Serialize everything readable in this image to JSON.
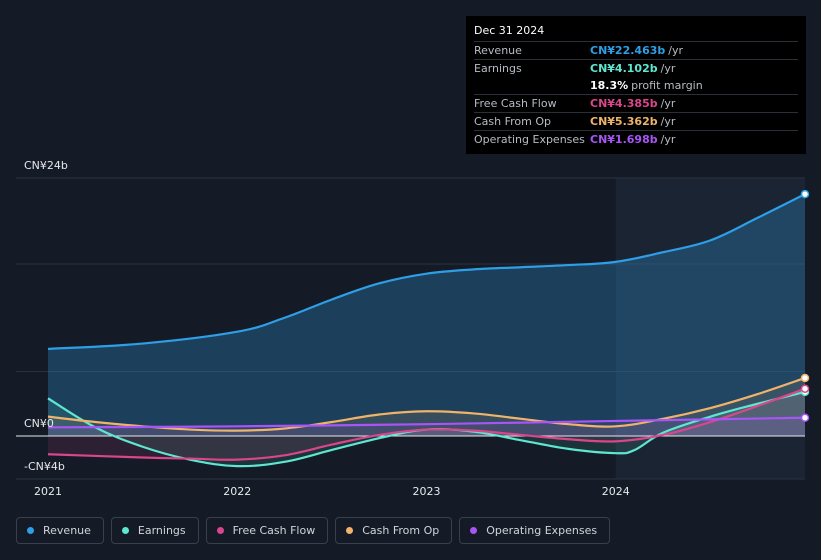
{
  "tooltip": {
    "date": "Dec 31 2024",
    "rows": [
      {
        "label": "Revenue",
        "value": "CN¥22.463b",
        "unit": "/yr",
        "color": "#2e9fe6"
      },
      {
        "label": "Earnings",
        "value": "CN¥4.102b",
        "unit": "/yr",
        "color": "#5ee6d0"
      },
      {
        "label": "Free Cash Flow",
        "value": "CN¥4.385b",
        "unit": "/yr",
        "color": "#d9468b"
      },
      {
        "label": "Cash From Op",
        "value": "CN¥5.362b",
        "unit": "/yr",
        "color": "#f0b36a"
      },
      {
        "label": "Operating Expenses",
        "value": "CN¥1.698b",
        "unit": "/yr",
        "color": "#a855f7"
      }
    ],
    "margin_value": "18.3%",
    "margin_label": "profit margin"
  },
  "legend": [
    {
      "label": "Revenue",
      "color": "#2e9fe6"
    },
    {
      "label": "Earnings",
      "color": "#5ee6d0"
    },
    {
      "label": "Free Cash Flow",
      "color": "#d9468b"
    },
    {
      "label": "Cash From Op",
      "color": "#f0b36a"
    },
    {
      "label": "Operating Expenses",
      "color": "#a855f7"
    }
  ],
  "chart_data": {
    "type": "line",
    "y_tick_labels": [
      "CN¥24b",
      "CN¥0",
      "-CN¥4b"
    ],
    "x_tick_labels": [
      "2021",
      "2022",
      "2023",
      "2024"
    ],
    "ylim": [
      -4,
      24
    ],
    "xlim": [
      2021.0,
      2025.0
    ],
    "forecast_shade_start": 2024.0,
    "series": [
      {
        "name": "Revenue",
        "color": "#2e9fe6",
        "x": [
          2021.0,
          2021.5,
          2022.0,
          2022.25,
          2022.5,
          2022.75,
          2023.0,
          2023.25,
          2023.5,
          2023.75,
          2024.0,
          2024.25,
          2024.5,
          2024.75,
          2025.0
        ],
        "y": [
          8.1,
          8.6,
          9.7,
          11.0,
          12.7,
          14.2,
          15.1,
          15.5,
          15.7,
          15.9,
          16.2,
          17.1,
          18.2,
          20.3,
          22.5
        ]
      },
      {
        "name": "Earnings",
        "color": "#5ee6d0",
        "x": [
          2021.0,
          2021.25,
          2021.5,
          2021.75,
          2022.0,
          2022.25,
          2022.5,
          2022.75,
          2023.0,
          2023.25,
          2023.5,
          2023.75,
          2024.0,
          2024.1,
          2024.25,
          2024.5,
          2024.75,
          2025.0
        ],
        "y": [
          3.5,
          0.8,
          -1.0,
          -2.2,
          -2.8,
          -2.4,
          -1.3,
          -0.2,
          0.6,
          0.4,
          -0.4,
          -1.2,
          -1.6,
          -1.3,
          0.3,
          1.8,
          3.0,
          4.1
        ]
      },
      {
        "name": "Free Cash Flow",
        "color": "#d9468b",
        "x": [
          2021.0,
          2021.5,
          2021.75,
          2022.0,
          2022.25,
          2022.5,
          2022.75,
          2023.0,
          2023.25,
          2023.5,
          2023.75,
          2024.0,
          2024.25,
          2024.5,
          2024.75,
          2025.0
        ],
        "y": [
          -1.7,
          -2.0,
          -2.1,
          -2.2,
          -1.8,
          -0.8,
          0.1,
          0.6,
          0.5,
          0.1,
          -0.3,
          -0.5,
          0.1,
          1.3,
          2.8,
          4.4
        ]
      },
      {
        "name": "Cash From Op",
        "color": "#f0b36a",
        "x": [
          2021.0,
          2021.25,
          2021.5,
          2021.75,
          2022.0,
          2022.25,
          2022.5,
          2022.75,
          2023.0,
          2023.25,
          2023.5,
          2023.75,
          2024.0,
          2024.25,
          2024.5,
          2024.75,
          2025.0
        ],
        "y": [
          1.8,
          1.3,
          0.9,
          0.6,
          0.5,
          0.7,
          1.3,
          2.0,
          2.3,
          2.1,
          1.6,
          1.1,
          0.9,
          1.6,
          2.6,
          3.9,
          5.4
        ]
      },
      {
        "name": "Operating Expenses",
        "color": "#a855f7",
        "x": [
          2021.0,
          2022.0,
          2023.0,
          2024.0,
          2025.0
        ],
        "y": [
          0.8,
          0.9,
          1.1,
          1.4,
          1.7
        ]
      }
    ]
  }
}
